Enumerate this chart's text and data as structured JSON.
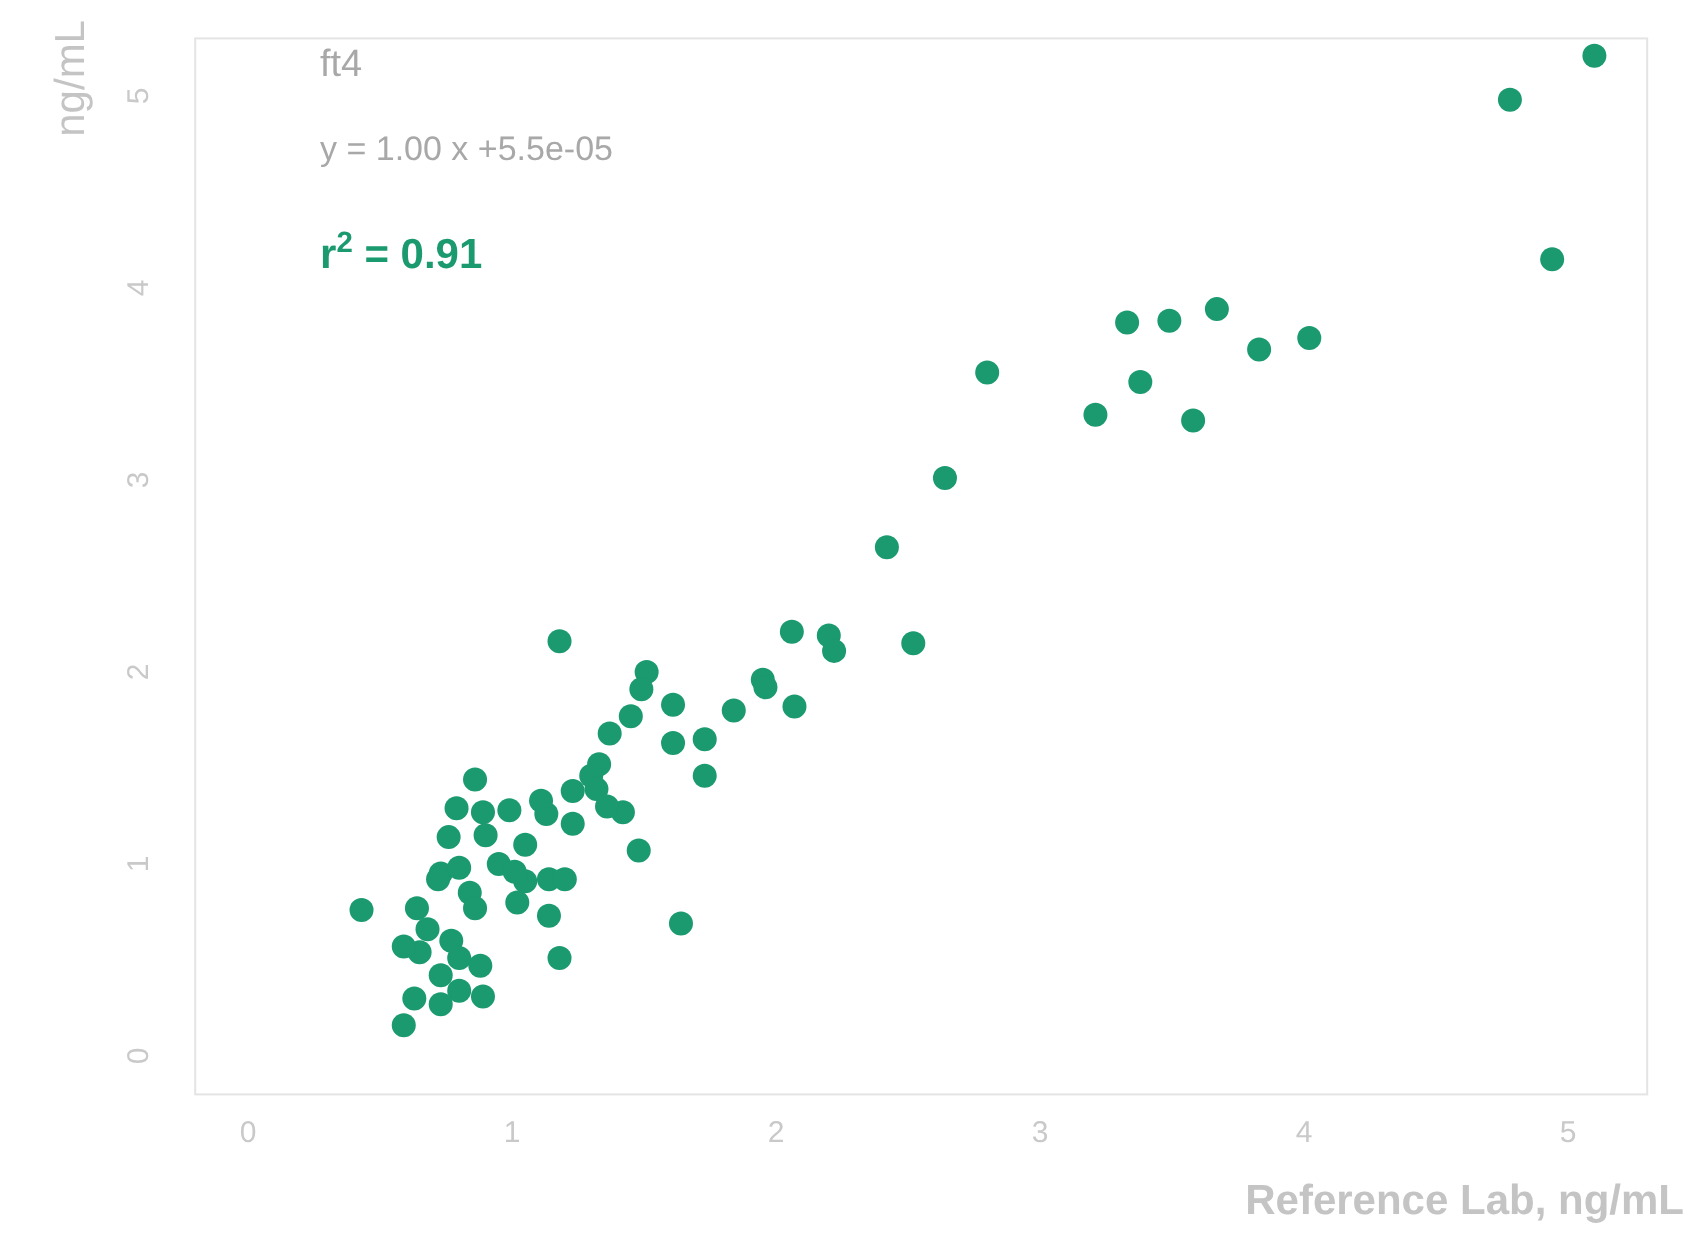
{
  "chart_data": {
    "type": "scatter",
    "title": "ft4",
    "xlabel": "Reference Lab, ng/mL",
    "ylabel": "ng/mL",
    "annotations": [
      "y = 1.00 x +5.5e-05",
      "r$^{2}$ = 0.91"
    ],
    "xlim": [
      -0.2,
      5.3
    ],
    "ylim": [
      -0.2,
      5.3
    ],
    "xticks": [
      0,
      1,
      2,
      3,
      4,
      5
    ],
    "yticks": [
      0,
      1,
      2,
      3,
      4,
      5
    ],
    "marker": "circle",
    "series": [
      {
        "color": "#1a9a6e",
        "x": [
          4.78,
          5.1,
          4.94,
          3.33,
          3.49,
          3.67,
          3.83,
          4.02,
          3.38,
          3.21,
          3.58,
          2.8,
          2.64,
          2.42,
          2.52,
          2.2,
          2.22,
          2.06,
          1.95,
          1.96,
          2.07,
          1.84,
          1.73,
          1.73,
          1.61,
          1.61,
          1.51,
          1.49,
          1.18,
          1.64,
          1.45,
          1.37,
          1.33,
          1.3,
          1.32,
          1.23,
          1.23,
          1.48,
          1.42,
          1.36,
          1.18,
          1.11,
          1.13,
          0.99,
          1.05,
          1.05,
          1.02,
          0.89,
          0.86,
          0.9,
          0.79,
          0.76,
          0.73,
          0.8,
          0.84,
          0.86,
          0.95,
          1.01,
          1.14,
          1.2,
          1.14,
          0.64,
          0.68,
          0.65,
          0.77,
          0.8,
          0.73,
          0.8,
          0.88,
          0.89,
          0.43,
          0.59,
          0.63,
          0.73,
          0.59,
          0.72
        ],
        "values": [
          4.98,
          5.21,
          4.15,
          3.82,
          3.83,
          3.89,
          3.68,
          3.74,
          3.51,
          3.34,
          3.31,
          3.56,
          3.01,
          2.65,
          2.15,
          2.19,
          2.11,
          2.21,
          1.96,
          1.92,
          1.82,
          1.8,
          1.65,
          1.46,
          1.83,
          1.63,
          2.0,
          1.91,
          2.16,
          0.69,
          1.77,
          1.68,
          1.52,
          1.46,
          1.39,
          1.38,
          1.21,
          1.07,
          1.27,
          1.3,
          0.51,
          1.33,
          1.26,
          1.28,
          1.1,
          0.91,
          0.8,
          1.27,
          1.44,
          1.15,
          1.29,
          1.14,
          0.95,
          0.98,
          0.85,
          0.77,
          1.0,
          0.96,
          0.92,
          0.92,
          0.73,
          0.77,
          0.66,
          0.54,
          0.6,
          0.51,
          0.42,
          0.34,
          0.47,
          0.31,
          0.76,
          0.57,
          0.3,
          0.27,
          0.16,
          0.92
        ]
      }
    ]
  }
}
